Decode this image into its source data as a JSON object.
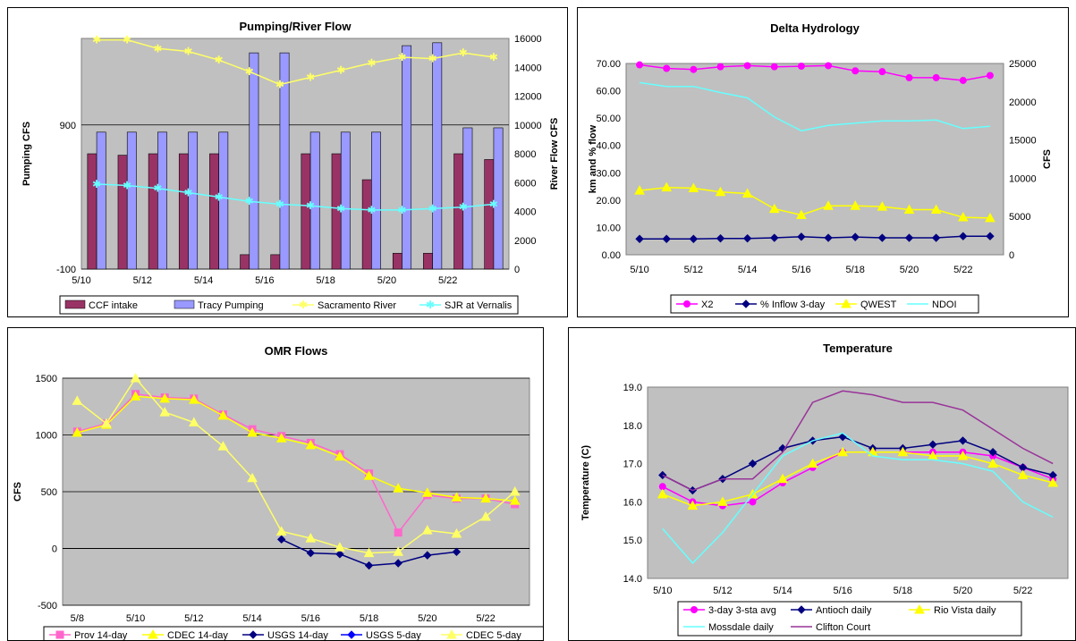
{
  "charts": [
    {
      "type": "bar-line",
      "title": "Pumping/River Flow",
      "ylabel": "Pumping CFS",
      "y2label": "River Flow CFS",
      "categories": [
        "5/10",
        "5/11",
        "5/12",
        "5/13",
        "5/14",
        "5/15",
        "5/16",
        "5/17",
        "5/18",
        "5/19",
        "5/20",
        "5/21",
        "5/22",
        "5/23"
      ],
      "x_tick_labels": [
        "5/10",
        "5/12",
        "5/14",
        "5/16",
        "5/18",
        "5/20",
        "5/22"
      ],
      "ylim": [
        -100,
        1500
      ],
      "y_ticks": [
        -100,
        900
      ],
      "y2lim": [
        0,
        16000
      ],
      "y2_ticks": [
        0,
        2000,
        4000,
        6000,
        8000,
        10000,
        12000,
        14000,
        16000
      ],
      "bar_series": [
        {
          "name": "CCF intake",
          "color": "#993366",
          "values": [
            700,
            690,
            700,
            700,
            700,
            0,
            0,
            700,
            700,
            520,
            10,
            10,
            700,
            660
          ]
        },
        {
          "name": "Tracy Pumping",
          "color": "#9999ff",
          "values": [
            850,
            850,
            850,
            850,
            850,
            1400,
            1400,
            850,
            850,
            850,
            1450,
            1470,
            880,
            880
          ]
        }
      ],
      "line_series": [
        {
          "name": "Sacramento River",
          "color": "#ffff66",
          "axis": "y2",
          "values": [
            15900,
            15900,
            15300,
            15100,
            14500,
            13700,
            12800,
            13300,
            13800,
            14300,
            14700,
            14600,
            15000,
            14700
          ]
        },
        {
          "name": "SJR at Vernalis",
          "color": "#66ffff",
          "axis": "y2",
          "values": [
            5900,
            5800,
            5600,
            5300,
            5000,
            4700,
            4500,
            4400,
            4200,
            4100,
            4100,
            4200,
            4300,
            4500
          ]
        }
      ],
      "legend": [
        "CCF intake",
        "Tracy Pumping",
        "Sacramento River",
        "SJR at Vernalis"
      ]
    },
    {
      "type": "line",
      "title": "Delta Hydrology",
      "ylabel": "km and % flow",
      "y2label": "CFS",
      "categories": [
        "5/10",
        "5/11",
        "5/12",
        "5/13",
        "5/14",
        "5/15",
        "5/16",
        "5/17",
        "5/18",
        "5/19",
        "5/20",
        "5/21",
        "5/22",
        "5/23"
      ],
      "x_tick_labels": [
        "5/10",
        "5/12",
        "5/14",
        "5/16",
        "5/18",
        "5/20",
        "5/22"
      ],
      "ylim": [
        0,
        70
      ],
      "y_ticks": [
        "0.00",
        "10.00",
        "20.00",
        "30.00",
        "40.00",
        "50.00",
        "60.00",
        "70.00"
      ],
      "y2lim": [
        0,
        25000
      ],
      "y2_ticks": [
        0,
        5000,
        10000,
        15000,
        20000,
        25000
      ],
      "series": [
        {
          "name": "X2",
          "color": "#ff00ff",
          "marker": "circle",
          "axis": "y",
          "values": [
            69.5,
            68.2,
            67.8,
            68.8,
            69.2,
            68.8,
            69.0,
            69.2,
            67.3,
            67.0,
            64.8,
            64.8,
            63.8,
            65.6
          ]
        },
        {
          "name": "% Inflow 3-day",
          "color": "#000080",
          "marker": "diamond",
          "axis": "y",
          "values": [
            5.8,
            5.8,
            5.8,
            6.0,
            6.0,
            6.2,
            6.6,
            6.2,
            6.5,
            6.2,
            6.2,
            6.2,
            6.8,
            6.8
          ]
        },
        {
          "name": "QWEST",
          "color": "#ffff00",
          "marker": "triangle",
          "axis": "y2",
          "values": [
            8400,
            8800,
            8700,
            8200,
            8000,
            6000,
            5200,
            6400,
            6400,
            6300,
            5900,
            5900,
            4900,
            4800
          ]
        },
        {
          "name": "NDOI",
          "color": "#66ffff",
          "marker": "none",
          "axis": "y2",
          "values": [
            22500,
            22000,
            22000,
            21200,
            20500,
            18000,
            16200,
            16900,
            17200,
            17500,
            17500,
            17600,
            16500,
            16800
          ]
        }
      ],
      "legend": [
        "X2",
        "% Inflow 3-day",
        "QWEST",
        "NDOI"
      ]
    },
    {
      "type": "line",
      "title": "OMR Flows",
      "ylabel": "CFS",
      "categories": [
        "5/8",
        "5/9",
        "5/10",
        "5/11",
        "5/12",
        "5/13",
        "5/14",
        "5/15",
        "5/16",
        "5/17",
        "5/18",
        "5/19",
        "5/20",
        "5/21",
        "5/22",
        "5/23"
      ],
      "x_tick_labels": [
        "5/8",
        "5/10",
        "5/12",
        "5/14",
        "5/16",
        "5/18",
        "5/20",
        "5/22"
      ],
      "ylim": [
        -500,
        1500
      ],
      "y_ticks": [
        -500,
        0,
        500,
        1000,
        1500
      ],
      "series": [
        {
          "name": "Prov 14-day",
          "color": "#ff66cc",
          "marker": "square",
          "values": [
            1030,
            1100,
            1360,
            1330,
            1320,
            1180,
            1050,
            990,
            930,
            830,
            660,
            140,
            470,
            440,
            440,
            390
          ]
        },
        {
          "name": "CDEC 14-day",
          "color": "#ffff00",
          "marker": "triangle",
          "values": [
            1020,
            1090,
            1340,
            1320,
            1310,
            1170,
            1020,
            970,
            910,
            810,
            640,
            530,
            490,
            450,
            440,
            420
          ]
        },
        {
          "name": "USGS 14-day",
          "color": "#000080",
          "marker": "diamond",
          "values": [
            null,
            null,
            null,
            null,
            null,
            null,
            null,
            80,
            -40,
            -50,
            -150,
            -130,
            -60,
            -30,
            null,
            null
          ]
        },
        {
          "name": "USGS 5-day",
          "color": "#0000ff",
          "marker": "diamond",
          "values": [
            null,
            null,
            null,
            null,
            null,
            null,
            null,
            null,
            null,
            null,
            null,
            null,
            null,
            null,
            null,
            null
          ]
        },
        {
          "name": "CDEC 5-day",
          "color": "#ffff66",
          "marker": "triangle",
          "values": [
            1300,
            1100,
            1500,
            1200,
            1110,
            900,
            620,
            150,
            90,
            10,
            -40,
            -30,
            160,
            130,
            280,
            500
          ]
        }
      ],
      "legend": [
        "Prov 14-day",
        "CDEC 14-day",
        "USGS 14-day",
        "USGS 5-day",
        "CDEC 5-day"
      ]
    },
    {
      "type": "line",
      "title": "Temperature",
      "ylabel": "Temperature (C)",
      "categories": [
        "5/10",
        "5/11",
        "5/12",
        "5/13",
        "5/14",
        "5/15",
        "5/16",
        "5/17",
        "5/18",
        "5/19",
        "5/20",
        "5/21",
        "5/22",
        "5/23"
      ],
      "x_tick_labels": [
        "5/10",
        "5/12",
        "5/14",
        "5/16",
        "5/18",
        "5/20",
        "5/22"
      ],
      "ylim": [
        14.0,
        19.0
      ],
      "y_ticks": [
        "14.0",
        "15.0",
        "16.0",
        "17.0",
        "18.0",
        "19.0"
      ],
      "series": [
        {
          "name": "3-day 3-sta avg",
          "color": "#ff00ff",
          "marker": "circle",
          "values": [
            16.4,
            16.0,
            15.9,
            16.0,
            16.5,
            16.9,
            17.3,
            17.3,
            17.3,
            17.3,
            17.3,
            17.2,
            16.9,
            16.6
          ]
        },
        {
          "name": "Antioch daily",
          "color": "#000080",
          "marker": "diamond",
          "values": [
            16.7,
            16.3,
            16.6,
            17.0,
            17.4,
            17.6,
            17.7,
            17.4,
            17.4,
            17.5,
            17.6,
            17.3,
            16.9,
            16.7
          ]
        },
        {
          "name": "Rio Vista daily",
          "color": "#ffff00",
          "marker": "triangle",
          "values": [
            16.2,
            15.9,
            16.0,
            16.2,
            16.6,
            17.0,
            17.3,
            17.3,
            17.3,
            17.2,
            17.2,
            17.0,
            16.7,
            16.5
          ]
        },
        {
          "name": "Mossdale daily",
          "color": "#66ffff",
          "marker": "none",
          "values": [
            15.3,
            14.4,
            15.2,
            16.2,
            17.2,
            17.6,
            17.8,
            17.2,
            17.1,
            17.1,
            17.0,
            16.8,
            16.0,
            15.6
          ]
        },
        {
          "name": "Clifton Court",
          "color": "#993399",
          "marker": "none",
          "values": [
            16.7,
            16.3,
            16.6,
            16.6,
            17.3,
            18.6,
            18.9,
            18.8,
            18.6,
            18.6,
            18.4,
            17.9,
            17.4,
            17.0
          ]
        }
      ],
      "legend": [
        "3-day 3-sta avg",
        "Antioch daily",
        "Rio Vista daily",
        "Mossdale daily",
        "Clifton Court"
      ]
    }
  ]
}
